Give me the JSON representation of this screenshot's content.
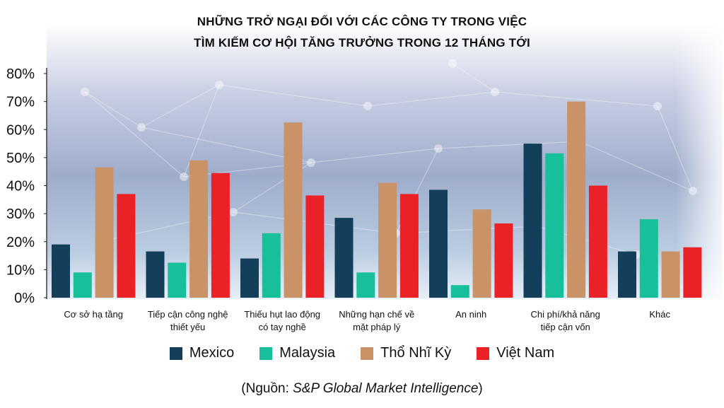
{
  "title_line1": "NHỮNG TRỞ NGẠI ĐỐI VỚI CÁC CÔNG TY TRONG VIỆC",
  "title_line2": "TÌM KIẾM CƠ HỘI TĂNG TRƯỞNG  TRONG 12 THÁNG TỚI",
  "source_prefix": "(Nguồn: ",
  "source_name": "S&P Global Market Intelligence",
  "source_suffix": ")",
  "chart_data": {
    "type": "bar",
    "categories": [
      [
        "Cơ sở hạ tầng"
      ],
      [
        "Tiếp cận công  nghệ",
        "thiết yếu"
      ],
      [
        "Thiếu hụt lao động",
        "có tay nghề"
      ],
      [
        "Những hạn chế về",
        "mặt pháp lý"
      ],
      [
        "An ninh"
      ],
      [
        "Chi phí/khả năng",
        "tiếp cận vốn"
      ],
      [
        "Khác"
      ]
    ],
    "series": [
      {
        "name": "Mexico",
        "color": "#133f5a",
        "values": [
          19,
          16.5,
          14,
          28.5,
          38.5,
          55,
          16.5
        ]
      },
      {
        "name": "Malaysia",
        "color": "#17c09a",
        "values": [
          9,
          12.5,
          23,
          9,
          4.5,
          51.5,
          28
        ]
      },
      {
        "name": "Thổ Nhĩ Kỳ",
        "color": "#c99267",
        "values": [
          46.5,
          49,
          62.5,
          41,
          31.5,
          70,
          16.5
        ]
      },
      {
        "name": "Việt Nam",
        "color": "#eb2128",
        "values": [
          37,
          44.5,
          36.5,
          37,
          26.5,
          40,
          18
        ]
      }
    ],
    "yticks": [
      "0%",
      "10%",
      "20%",
      "30%",
      "40%",
      "50%",
      "60%",
      "70%",
      "80%"
    ],
    "ylim": [
      0,
      80
    ],
    "grid": false,
    "legend_position": "bottom"
  }
}
